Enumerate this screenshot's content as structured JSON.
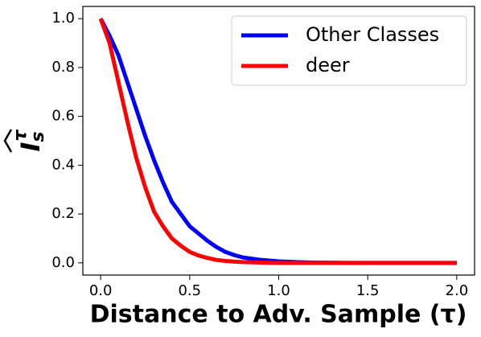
{
  "chart_data": {
    "type": "line",
    "xlabel": "Distance to Adv. Sample (τ)",
    "ylabel": "I",
    "ylabel_sub": "s",
    "ylabel_sup": "τ",
    "x": [
      0,
      0.05,
      0.1,
      0.15,
      0.2,
      0.25,
      0.3,
      0.35,
      0.4,
      0.45,
      0.5,
      0.55,
      0.6,
      0.65,
      0.7,
      0.75,
      0.8,
      0.9,
      1.0,
      1.1,
      1.2,
      1.4,
      1.6,
      1.8,
      2.0
    ],
    "series": [
      {
        "name": "Other Classes",
        "color": "#0000ff",
        "values": [
          1.0,
          0.93,
          0.85,
          0.74,
          0.63,
          0.52,
          0.42,
          0.33,
          0.25,
          0.2,
          0.15,
          0.12,
          0.09,
          0.065,
          0.045,
          0.032,
          0.022,
          0.012,
          0.006,
          0.003,
          0.001,
          0,
          0,
          0,
          0
        ]
      },
      {
        "name": "deer",
        "color": "#ff0000",
        "values": [
          1.0,
          0.9,
          0.74,
          0.58,
          0.43,
          0.31,
          0.21,
          0.15,
          0.1,
          0.07,
          0.045,
          0.03,
          0.02,
          0.012,
          0.008,
          0.005,
          0.003,
          0.001,
          0,
          0,
          0,
          0,
          0,
          0,
          0
        ]
      }
    ],
    "xlim": [
      -0.1,
      2.1
    ],
    "ylim": [
      -0.05,
      1.05
    ],
    "xticks": [
      {
        "value": 0,
        "label": "0.0"
      },
      0.5,
      {
        "value": 1,
        "label": "1.0"
      },
      1.5,
      {
        "value": 2,
        "label": "2.0"
      }
    ],
    "yticks": [
      {
        "value": 0,
        "label": "0.0"
      },
      0.2,
      0.4,
      0.6,
      0.8,
      {
        "value": 1,
        "label": "1.0"
      }
    ],
    "legend": "upper right",
    "grid": false
  }
}
